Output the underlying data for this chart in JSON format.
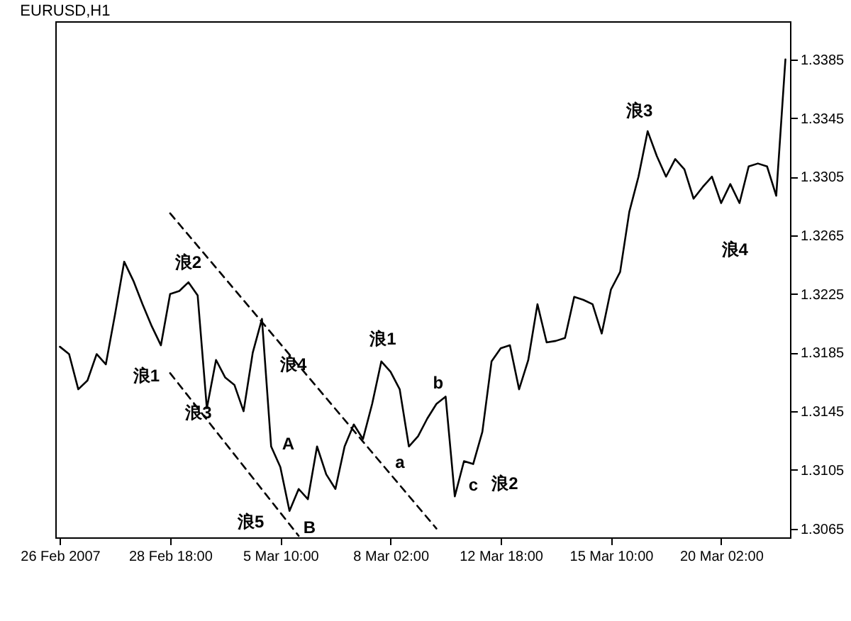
{
  "chart_data": {
    "type": "line",
    "title": "EURUSD,H1",
    "categories": [
      "26 Feb 2007",
      null,
      null,
      null,
      null,
      null,
      null,
      null,
      null,
      null,
      null,
      null,
      "28 Feb 18:00",
      null,
      null,
      null,
      null,
      null,
      null,
      null,
      null,
      null,
      null,
      null,
      "5 Mar 10:00",
      null,
      null,
      null,
      null,
      null,
      null,
      null,
      null,
      null,
      null,
      null,
      "8 Mar 02:00",
      null,
      null,
      null,
      null,
      null,
      null,
      null,
      null,
      null,
      null,
      null,
      "12 Mar 18:00",
      null,
      null,
      null,
      null,
      null,
      null,
      null,
      null,
      null,
      null,
      null,
      "15 Mar 10:00",
      null,
      null,
      null,
      null,
      null,
      null,
      null,
      null,
      null,
      null,
      null,
      "20 Mar 02:00",
      null,
      null,
      null,
      null,
      null,
      null,
      null
    ],
    "ylim": [
      1.3059,
      1.3411
    ],
    "yticks": [
      1.3065,
      1.3105,
      1.3145,
      1.3185,
      1.3225,
      1.3265,
      1.3305,
      1.3345,
      1.3385
    ],
    "grid": false,
    "series": [
      {
        "color": "#000000",
        "line_style": "solid",
        "values": [
          1.3189,
          1.3184,
          1.316,
          1.3166,
          1.3184,
          1.3177,
          1.3211,
          1.3247,
          1.3234,
          1.3218,
          1.3203,
          1.319,
          1.3225,
          1.3227,
          1.3233,
          1.3224,
          1.3147,
          1.318,
          1.3168,
          1.3163,
          1.3145,
          1.3185,
          1.3208,
          1.3121,
          1.3107,
          1.3077,
          1.3092,
          1.3085,
          1.3121,
          1.3102,
          1.3092,
          1.3121,
          1.3136,
          1.3126,
          1.315,
          1.3179,
          1.3172,
          1.316,
          1.3121,
          1.3128,
          1.314,
          1.315,
          1.3155,
          1.3087,
          1.3111,
          1.3109,
          1.3131,
          1.3179,
          1.3188,
          1.319,
          1.316,
          1.318,
          1.3218,
          1.3192,
          1.3193,
          1.3195,
          1.3223,
          1.3221,
          1.3218,
          1.3198,
          1.3228,
          1.324,
          1.3281,
          1.3305,
          1.3336,
          1.3319,
          1.3305,
          1.3317,
          1.331,
          1.329,
          1.3298,
          1.3305,
          1.3287,
          1.33,
          1.3287,
          1.3312,
          1.3314,
          1.3312,
          1.3292,
          1.3385
        ]
      },
      {
        "color": "#000000",
        "line_style": "dashed",
        "values": [
          null,
          null,
          null,
          null,
          null,
          null,
          null,
          null,
          null,
          null,
          null,
          null,
          1.328,
          null,
          null,
          null,
          null,
          null,
          null,
          null,
          null,
          null,
          null,
          null,
          null,
          null,
          null,
          null,
          null,
          null,
          null,
          null,
          null,
          null,
          null,
          null,
          null,
          null,
          null,
          null,
          null,
          1.3065,
          null,
          null,
          null,
          null,
          null,
          null,
          null,
          null,
          null,
          null,
          null,
          null,
          null,
          null,
          null,
          null,
          null,
          null,
          null,
          null,
          null,
          null,
          null,
          null,
          null,
          null,
          null,
          null,
          null,
          null,
          null,
          null,
          null,
          null,
          null,
          null,
          null,
          null
        ]
      },
      {
        "color": "#000000",
        "line_style": "dashed",
        "values": [
          null,
          null,
          null,
          null,
          null,
          null,
          null,
          null,
          null,
          null,
          null,
          null,
          1.3171,
          null,
          null,
          null,
          null,
          null,
          null,
          null,
          null,
          null,
          null,
          null,
          null,
          null,
          1.306,
          null,
          null,
          null,
          null,
          null,
          null,
          null,
          null,
          null,
          null,
          null,
          null,
          null,
          null,
          null,
          null,
          null,
          null,
          null,
          null,
          null,
          null,
          null,
          null,
          null,
          null,
          null,
          null,
          null,
          null,
          null,
          null,
          null,
          null,
          null,
          null,
          null,
          null,
          null,
          null,
          null,
          null,
          null,
          null,
          null,
          null,
          null,
          null,
          null,
          null,
          null,
          null,
          null
        ]
      }
    ],
    "annotations": [
      "浪1",
      "浪2",
      "浪3",
      "浪4",
      "A",
      "浪5",
      "B",
      "浪1",
      "a",
      "b",
      "c",
      "浪2",
      "浪3",
      "浪4"
    ]
  }
}
